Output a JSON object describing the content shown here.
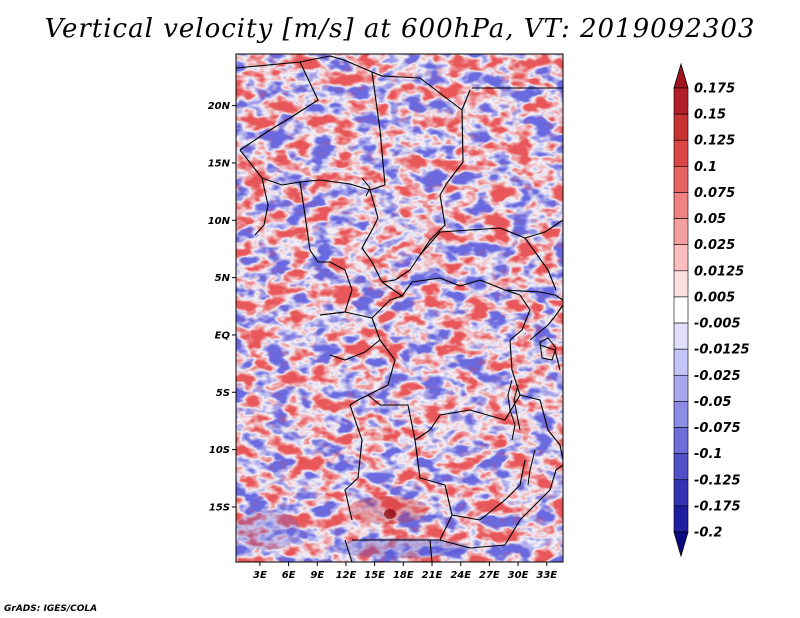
{
  "map": {
    "title": "Vertical velocity [m/s] at 600hPa, VT: 2019092303",
    "credit": "GrADS: IGES/COLA",
    "lat_ticks": [
      {
        "label": "20N",
        "value": 20
      },
      {
        "label": "15N",
        "value": 15
      },
      {
        "label": "10N",
        "value": 10
      },
      {
        "label": "5N",
        "value": 5
      },
      {
        "label": "EQ",
        "value": 0
      },
      {
        "label": "5S",
        "value": -5
      },
      {
        "label": "10S",
        "value": -10
      },
      {
        "label": "15S",
        "value": -15
      }
    ],
    "lon_ticks": [
      {
        "label": "3E",
        "value": 3
      },
      {
        "label": "6E",
        "value": 6
      },
      {
        "label": "9E",
        "value": 9
      },
      {
        "label": "12E",
        "value": 12
      },
      {
        "label": "15E",
        "value": 15
      },
      {
        "label": "18E",
        "value": 18
      },
      {
        "label": "21E",
        "value": 21
      },
      {
        "label": "24E",
        "value": 24
      },
      {
        "label": "27E",
        "value": 27
      },
      {
        "label": "30E",
        "value": 30
      },
      {
        "label": "33E",
        "value": 33
      }
    ],
    "lon_range": [
      0.5,
      34.7
    ],
    "lat_range": [
      -19.8,
      24.5
    ],
    "colorbar": {
      "levels": [
        "0.175",
        "0.15",
        "0.125",
        "0.1",
        "0.075",
        "0.05",
        "0.025",
        "0.0125",
        "0.005",
        "-0.005",
        "-0.0125",
        "-0.025",
        "-0.05",
        "-0.075",
        "-0.1",
        "-0.125",
        "-0.175",
        "-0.2"
      ],
      "colors": [
        "#a0141e",
        "#b41e28",
        "#c83232",
        "#dc4646",
        "#e66464",
        "#f08282",
        "#f5a0a0",
        "#fabebe",
        "#fde0e0",
        "#ffffff",
        "#e0e0fd",
        "#c4c4f8",
        "#a8a8f0",
        "#8c8ce6",
        "#6e6ed8",
        "#5050c8",
        "#3434b4",
        "#1e1ea0",
        "#0a0a82"
      ]
    }
  }
}
